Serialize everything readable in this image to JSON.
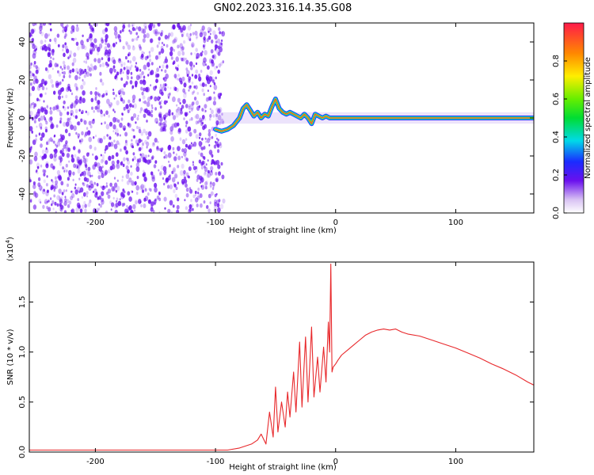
{
  "title": "GN02.2023.316.14.35.G08",
  "colors": {
    "snr_line": "#e8282b",
    "spectrogram_speckle": "#6a10ee",
    "ridge": "#ff1a4a",
    "background": "#ffffff"
  },
  "chart_data": [
    {
      "type": "heatmap",
      "xlabel": "Height of straight line (km)",
      "ylabel": "Frequency (Hz)",
      "xlim": [
        -255,
        165
      ],
      "ylim": [
        -50,
        50
      ],
      "xticks": [
        -200,
        -100,
        0,
        100
      ],
      "yticks": [
        -40,
        -20,
        0,
        20,
        40
      ],
      "grid": false,
      "ridge": {
        "x": [
          -100,
          -95,
          -90,
          -85,
          -80,
          -77,
          -74,
          -71,
          -68,
          -65,
          -62,
          -59,
          -56,
          -53,
          -50,
          -47,
          -44,
          -41,
          -38,
          -35,
          -32,
          -29,
          -26,
          -23,
          -20,
          -17,
          -14,
          -11,
          -8,
          -5,
          0,
          20,
          50,
          80,
          110,
          140,
          165
        ],
        "y": [
          -6,
          -7,
          -6,
          -4,
          0,
          5,
          7,
          4,
          1,
          3,
          0,
          2,
          1,
          6,
          10,
          5,
          3,
          2,
          3,
          2,
          1,
          0,
          2,
          0,
          -3,
          2,
          1,
          0,
          1,
          0,
          0,
          0,
          0,
          0,
          0,
          0,
          0
        ]
      },
      "noise_region_x": [
        -255,
        -93
      ],
      "colorbar": {
        "label": "Normalized spectral amplitude",
        "range": [
          0,
          1
        ],
        "ticks": [
          0.0,
          0.2,
          0.4,
          0.6,
          0.8
        ],
        "tick_labels": [
          "0.0",
          "0.2",
          "0.4",
          "0.6",
          "0.8"
        ]
      }
    },
    {
      "type": "line",
      "xlabel": "Height of straight line (km)",
      "ylabel": "SNR (10 * v/v)",
      "multiplier_label": "(x10",
      "multiplier_exp": "4",
      "xlim": [
        -255,
        165
      ],
      "ylim": [
        0,
        1.9
      ],
      "xticks": [
        -200,
        -100,
        0,
        100
      ],
      "yticks": [
        0.0,
        0.5,
        1.0,
        1.5
      ],
      "ytick_labels": [
        "0.0",
        "0.5",
        "1.0",
        "1.5"
      ],
      "grid": false,
      "series": [
        {
          "x": [
            -255,
            -200,
            -150,
            -100,
            -90,
            -80,
            -70,
            -65,
            -62,
            -58,
            -55,
            -52,
            -50,
            -48,
            -45,
            -42,
            -40,
            -38,
            -35,
            -33,
            -30,
            -28,
            -25,
            -23,
            -20,
            -18,
            -15,
            -13,
            -10,
            -8,
            -6,
            -5,
            -4,
            -3,
            -2,
            0,
            2,
            5,
            10,
            15,
            20,
            25,
            30,
            35,
            40,
            45,
            50,
            55,
            60,
            70,
            80,
            90,
            100,
            110,
            120,
            130,
            140,
            150,
            160,
            165
          ],
          "y": [
            0.02,
            0.02,
            0.02,
            0.02,
            0.02,
            0.04,
            0.08,
            0.12,
            0.18,
            0.08,
            0.4,
            0.15,
            0.65,
            0.2,
            0.5,
            0.25,
            0.6,
            0.35,
            0.8,
            0.4,
            1.1,
            0.45,
            1.15,
            0.5,
            1.25,
            0.55,
            0.95,
            0.6,
            1.05,
            0.7,
            1.3,
            1.0,
            1.88,
            0.8,
            0.85,
            0.88,
            0.92,
            0.97,
            1.02,
            1.07,
            1.12,
            1.17,
            1.2,
            1.22,
            1.23,
            1.22,
            1.23,
            1.2,
            1.18,
            1.16,
            1.12,
            1.08,
            1.04,
            0.99,
            0.94,
            0.88,
            0.83,
            0.77,
            0.7,
            0.67
          ]
        }
      ]
    }
  ]
}
